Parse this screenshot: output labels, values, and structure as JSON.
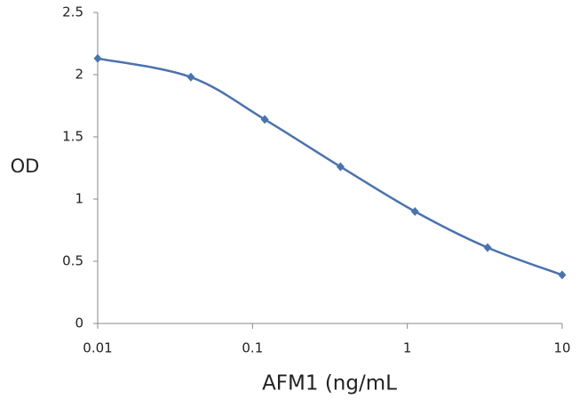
{
  "chart_data": {
    "type": "line",
    "xlabel": "AFM1 (ng/mL",
    "ylabel": "OD",
    "x": [
      0.01,
      0.04,
      0.12,
      0.37,
      1.12,
      3.3,
      10
    ],
    "series": [
      {
        "name": "OD",
        "color": "#4a73ad",
        "values": [
          2.13,
          1.98,
          1.64,
          1.26,
          0.9,
          0.61,
          0.39
        ]
      }
    ],
    "xscale": "log",
    "xlim": [
      0.01,
      10
    ],
    "xticks": [
      0.01,
      0.1,
      1,
      10
    ],
    "ylim": [
      0,
      2.5
    ],
    "yticks": [
      0,
      0.5,
      1,
      1.5,
      2,
      2.5
    ],
    "grid": false
  }
}
